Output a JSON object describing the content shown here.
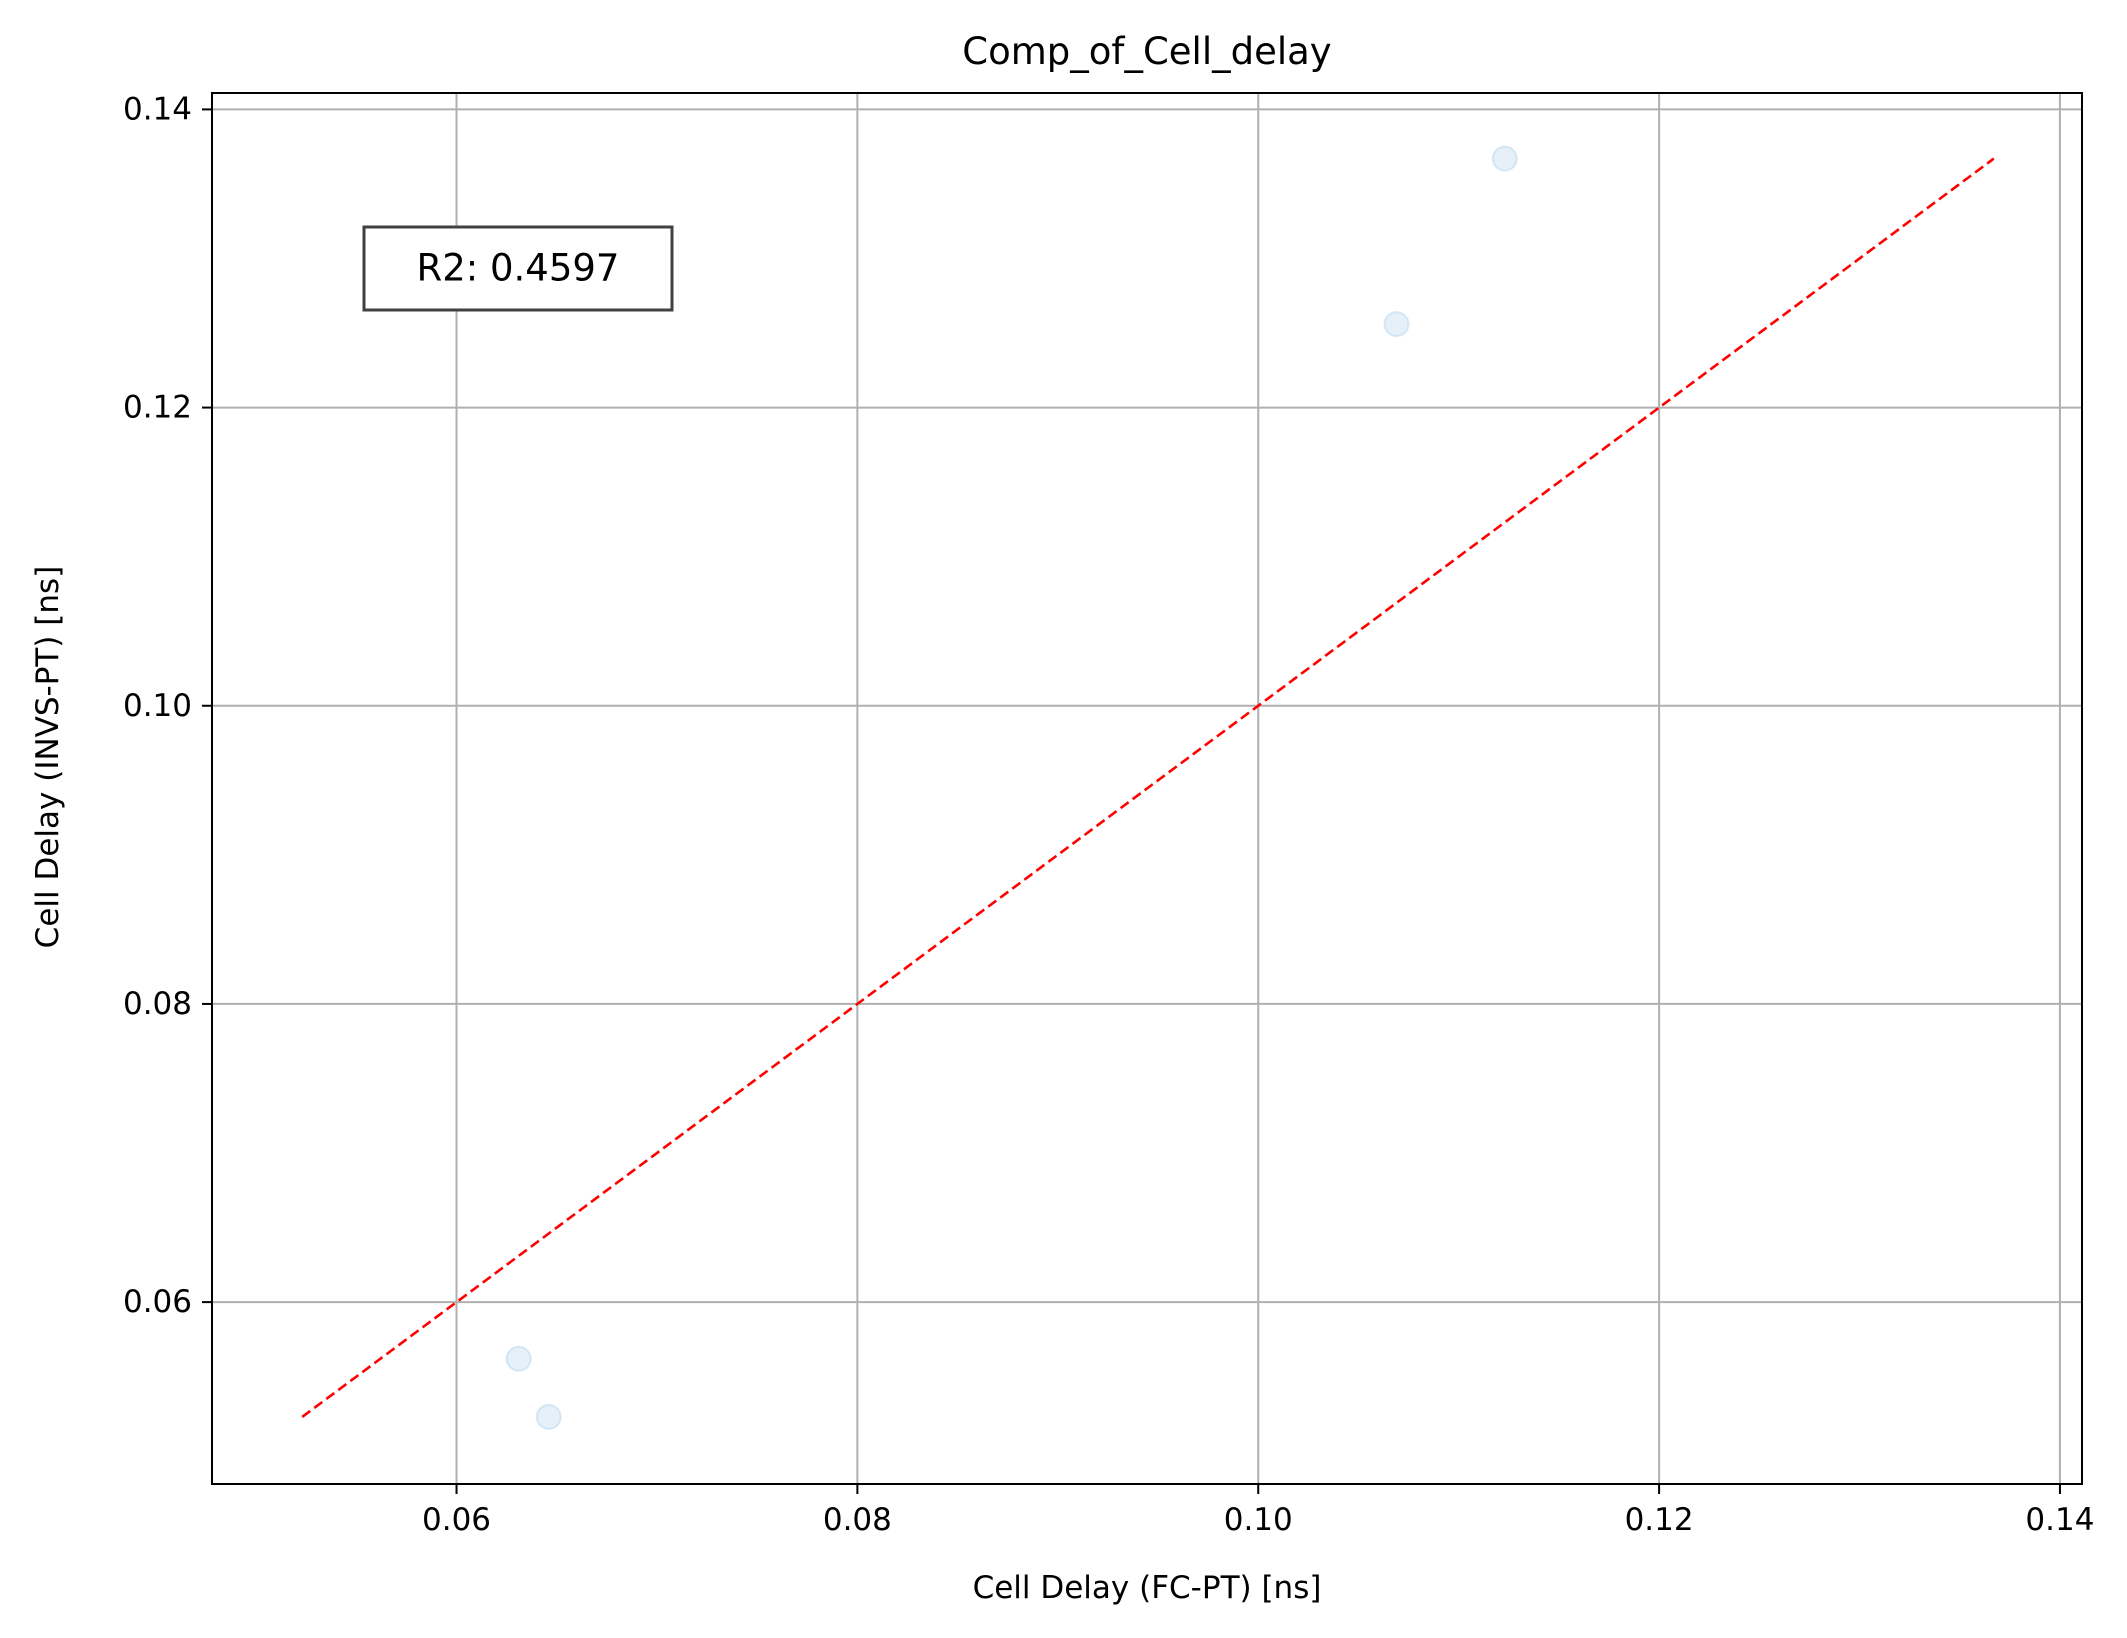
{
  "chart_data": {
    "type": "scatter",
    "title": "Comp_of_Cell_delay",
    "xlabel": "Cell Delay (FC-PT) [ns]",
    "ylabel": "Cell Delay (INVS-PT) [ns]",
    "xlim": [
      0.0478,
      0.1411
    ],
    "ylim": [
      0.0478,
      0.1411
    ],
    "xticks": [
      0.06,
      0.08,
      0.1,
      0.12,
      0.14
    ],
    "xtick_labels": [
      "0.06",
      "0.08",
      "0.10",
      "0.12",
      "0.14"
    ],
    "yticks": [
      0.06,
      0.08,
      0.1,
      0.12,
      0.14
    ],
    "ytick_labels": [
      "0.06",
      "0.08",
      "0.10",
      "0.12",
      "0.14"
    ],
    "grid": true,
    "series": [
      {
        "points": [
          {
            "x": 0.0631,
            "y": 0.0562
          },
          {
            "x": 0.0646,
            "y": 0.0523
          },
          {
            "x": 0.1069,
            "y": 0.1256
          },
          {
            "x": 0.1123,
            "y": 0.1367
          }
        ],
        "color": "#a8cce8",
        "alpha": 0.3
      }
    ],
    "reference_line": {
      "x": [
        0.0523,
        0.1367
      ],
      "y": [
        0.0523,
        0.1367
      ],
      "color": "#ff0000",
      "style": "dashed"
    },
    "annotation": {
      "text": "R2: 0.4597"
    },
    "colors": {
      "axes": "#000000",
      "grid": "#b0b0b0",
      "annotation_border": "#404040"
    }
  }
}
